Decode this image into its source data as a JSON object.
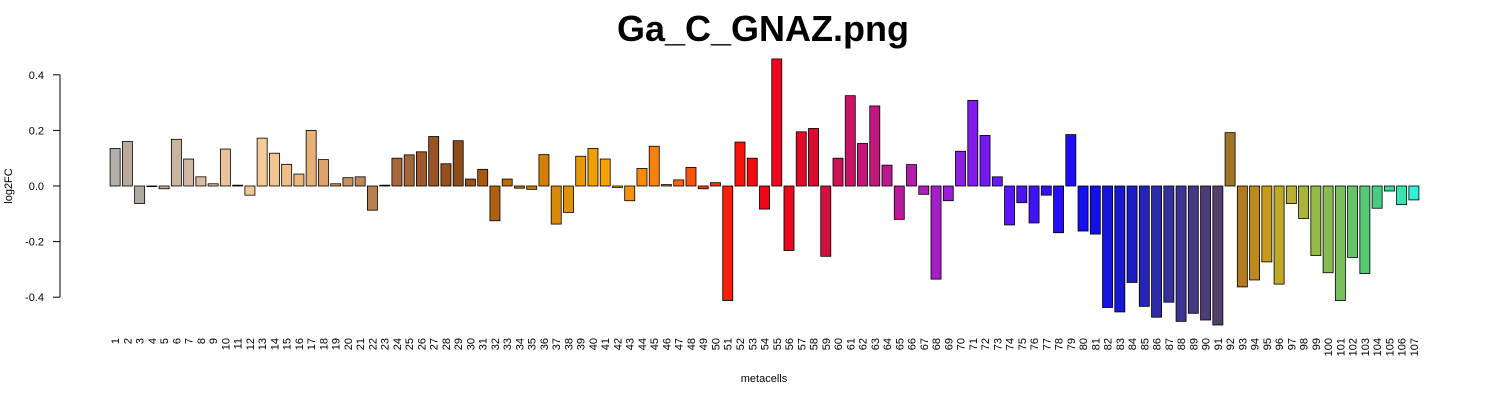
{
  "chart_data": {
    "type": "bar",
    "title": "Ga_C_GNAZ.png",
    "xlabel": "metacells",
    "ylabel": "log2FC",
    "ylim": [
      -0.4,
      0.4
    ],
    "yticks": [
      "-0.4",
      "-0.2",
      "0.0",
      "0.2",
      "0.4"
    ],
    "ytick_values": [
      -0.4,
      -0.2,
      0.0,
      0.2,
      0.4
    ],
    "grid": false,
    "legend": "none",
    "categories": [
      "1",
      "2",
      "3",
      "4",
      "5",
      "6",
      "7",
      "8",
      "9",
      "10",
      "11",
      "12",
      "13",
      "14",
      "15",
      "16",
      "17",
      "18",
      "19",
      "20",
      "21",
      "22",
      "23",
      "24",
      "25",
      "26",
      "27",
      "28",
      "29",
      "30",
      "31",
      "32",
      "33",
      "34",
      "35",
      "36",
      "37",
      "38",
      "39",
      "40",
      "41",
      "42",
      "43",
      "44",
      "45",
      "46",
      "47",
      "48",
      "49",
      "50",
      "51",
      "52",
      "53",
      "54",
      "55",
      "56",
      "57",
      "58",
      "59",
      "60",
      "61",
      "62",
      "63",
      "64",
      "65",
      "66",
      "67",
      "68",
      "69",
      "70",
      "71",
      "72",
      "73",
      "74",
      "75",
      "76",
      "77",
      "78",
      "79",
      "80",
      "81",
      "82",
      "83",
      "84",
      "85",
      "86",
      "87",
      "88",
      "89",
      "90",
      "91",
      "92",
      "93",
      "94",
      "95",
      "96",
      "97",
      "98",
      "99",
      "100",
      "101",
      "102",
      "103",
      "104",
      "105",
      "106",
      "107"
    ],
    "values": [
      0.135,
      0.16,
      -0.063,
      0.0,
      -0.01,
      0.168,
      0.097,
      0.033,
      0.008,
      0.133,
      0.003,
      -0.033,
      0.172,
      0.118,
      0.078,
      0.043,
      0.2,
      0.095,
      0.008,
      0.03,
      0.033,
      -0.087,
      0.003,
      0.1,
      0.112,
      0.123,
      0.178,
      0.08,
      0.163,
      0.025,
      0.06,
      -0.125,
      0.025,
      -0.008,
      -0.012,
      0.113,
      -0.137,
      -0.095,
      0.107,
      0.135,
      0.097,
      -0.005,
      -0.053,
      0.063,
      0.143,
      0.005,
      0.022,
      0.067,
      -0.01,
      0.012,
      -0.412,
      0.158,
      0.1,
      -0.083,
      0.457,
      -0.232,
      0.195,
      0.207,
      -0.253,
      0.1,
      0.325,
      0.153,
      0.288,
      0.075,
      -0.12,
      0.077,
      -0.03,
      -0.335,
      -0.053,
      0.125,
      0.308,
      0.182,
      0.033,
      -0.14,
      -0.06,
      -0.133,
      -0.033,
      -0.168,
      0.185,
      -0.162,
      -0.173,
      -0.437,
      -0.453,
      -0.347,
      -0.433,
      -0.472,
      -0.418,
      -0.487,
      -0.458,
      -0.482,
      -0.5,
      0.192,
      -0.363,
      -0.338,
      -0.273,
      -0.353,
      -0.063,
      -0.117,
      -0.25,
      -0.312,
      -0.412,
      -0.257,
      -0.315,
      -0.08,
      -0.018,
      -0.067,
      -0.05
    ],
    "colors": [
      "#b4afa8",
      "#bbaa9b",
      "#b0a9a2",
      "#b9ae9f",
      "#c6b2a0",
      "#c9b4a0",
      "#d2b8a2",
      "#d9bb9d",
      "#e2c09b",
      "#e9c39c",
      "#eec69d",
      "#f0c597",
      "#f5cb98",
      "#f3c590",
      "#f0bd88",
      "#eab880",
      "#e8b077",
      "#dca36d",
      "#d49b63",
      "#c89060",
      "#bf885a",
      "#b8804e",
      "#b07545",
      "#a8683c",
      "#a46636",
      "#9c5a2c",
      "#985424",
      "#96501e",
      "#8e4c18",
      "#9a5018",
      "#a85a15",
      "#b06012",
      "#b86a10",
      "#c0720c",
      "#c87a0a",
      "#d08008",
      "#d88a06",
      "#e09205",
      "#e89805",
      "#f09e04",
      "#f5a005",
      "#f89c08",
      "#f8920a",
      "#f88a0c",
      "#f8800e",
      "#f87210",
      "#f86410",
      "#f8520e",
      "#f8400e",
      "#f8300c",
      "#f81e0a",
      "#f8100a",
      "#f50a10",
      "#f00618",
      "#ee061c",
      "#e80820",
      "#e00a28",
      "#d80c30",
      "#d01040",
      "#cc1252",
      "#c81466",
      "#c41676",
      "#c0187e",
      "#bc1a8c",
      "#b81c9a",
      "#b41eaa",
      "#ac20b8",
      "#a420c6",
      "#9820d2",
      "#8c1ee0",
      "#801cea",
      "#741af0",
      "#6618f5",
      "#5a16f8",
      "#4e14f8",
      "#4012f8",
      "#3410f8",
      "#280ef8",
      "#1e0cf8",
      "#1410f0",
      "#1212e8",
      "#1414de",
      "#1818d2",
      "#1c1cc6",
      "#2424b8",
      "#2c2ca8",
      "#34309c",
      "#3c3490",
      "#443884",
      "#4c3c78",
      "#54406c",
      "#a07428",
      "#b27a1a",
      "#bc8a1c",
      "#c89a1c",
      "#c0a828",
      "#b8b034",
      "#a8b43c",
      "#98b848",
      "#88bc52",
      "#78c05c",
      "#68c468",
      "#58c874",
      "#48cc82",
      "#40d896",
      "#38e4b4",
      "#30f0d8"
    ]
  }
}
